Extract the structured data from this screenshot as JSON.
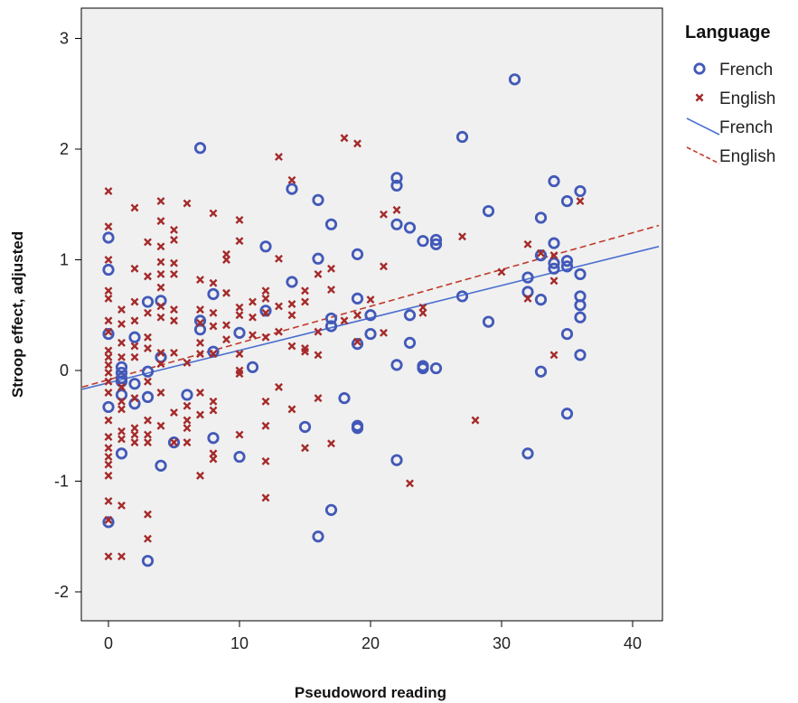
{
  "chart_data": {
    "type": "scatter",
    "xlabel": "Pseudoword reading",
    "ylabel": "Stroop effect, adjusted",
    "xlim": [
      -2,
      42
    ],
    "ylim": [
      -2.3,
      3.3
    ],
    "x_ticks": [
      "0",
      "10",
      "20",
      "30",
      "40"
    ],
    "y_ticks": [
      "-2",
      "-1",
      "0",
      "1",
      "2",
      "3"
    ],
    "grid": false,
    "legend": {
      "title": "Language",
      "position": "right",
      "entries": [
        {
          "label": "French",
          "kind": "marker-circle",
          "color": "#4259b8"
        },
        {
          "label": "English",
          "kind": "marker-x",
          "color": "#a52a2a"
        },
        {
          "label": "French",
          "kind": "line-solid",
          "color": "#4a6fd0"
        },
        {
          "label": "English",
          "kind": "line-dashed",
          "color": "#c0392b"
        }
      ]
    },
    "series": [
      {
        "name": "French",
        "marker": "circle",
        "color": "#4259b8",
        "points": [
          [
            0,
            1.2
          ],
          [
            0,
            0.91
          ],
          [
            0,
            0.33
          ],
          [
            0,
            -0.33
          ],
          [
            0,
            -1.37
          ],
          [
            1,
            0.03
          ],
          [
            1,
            -0.02
          ],
          [
            1,
            -0.07
          ],
          [
            1,
            -0.1
          ],
          [
            1,
            -0.22
          ],
          [
            1,
            -0.75
          ],
          [
            2,
            0.3
          ],
          [
            2,
            -0.12
          ],
          [
            2,
            -0.3
          ],
          [
            3,
            0.62
          ],
          [
            3,
            -0.01
          ],
          [
            3,
            -0.24
          ],
          [
            3,
            -1.72
          ],
          [
            4,
            0.63
          ],
          [
            4,
            0.12
          ],
          [
            4,
            -0.86
          ],
          [
            5,
            -0.65
          ],
          [
            6,
            -0.22
          ],
          [
            7,
            2.01
          ],
          [
            7,
            0.45
          ],
          [
            7,
            0.37
          ],
          [
            8,
            0.69
          ],
          [
            8,
            0.17
          ],
          [
            8,
            -0.61
          ],
          [
            10,
            0.34
          ],
          [
            10,
            -0.78
          ],
          [
            11,
            0.03
          ],
          [
            12,
            1.12
          ],
          [
            12,
            0.54
          ],
          [
            14,
            1.64
          ],
          [
            14,
            0.8
          ],
          [
            15,
            -0.51
          ],
          [
            16,
            1.54
          ],
          [
            16,
            1.01
          ],
          [
            16,
            -1.5
          ],
          [
            17,
            1.32
          ],
          [
            17,
            0.47
          ],
          [
            17,
            0.4
          ],
          [
            17,
            -1.26
          ],
          [
            18,
            -0.25
          ],
          [
            19,
            1.05
          ],
          [
            19,
            0.65
          ],
          [
            19,
            0.24
          ],
          [
            19,
            -0.5
          ],
          [
            19,
            -0.52
          ],
          [
            20,
            0.5
          ],
          [
            20,
            0.33
          ],
          [
            22,
            1.74
          ],
          [
            22,
            1.67
          ],
          [
            22,
            1.32
          ],
          [
            22,
            0.05
          ],
          [
            22,
            -0.81
          ],
          [
            23,
            1.29
          ],
          [
            23,
            0.5
          ],
          [
            23,
            0.25
          ],
          [
            24,
            1.17
          ],
          [
            24,
            0.04
          ],
          [
            24,
            0.02
          ],
          [
            25,
            1.18
          ],
          [
            25,
            1.14
          ],
          [
            25,
            0.02
          ],
          [
            27,
            2.11
          ],
          [
            27,
            0.67
          ],
          [
            29,
            1.44
          ],
          [
            29,
            0.44
          ],
          [
            31,
            2.63
          ],
          [
            32,
            0.84
          ],
          [
            32,
            0.71
          ],
          [
            32,
            -0.75
          ],
          [
            33,
            1.38
          ],
          [
            33,
            1.04
          ],
          [
            33,
            0.64
          ],
          [
            33,
            -0.01
          ],
          [
            34,
            1.71
          ],
          [
            34,
            1.15
          ],
          [
            34,
            0.97
          ],
          [
            34,
            0.92
          ],
          [
            35,
            1.53
          ],
          [
            35,
            0.99
          ],
          [
            35,
            0.94
          ],
          [
            35,
            0.33
          ],
          [
            35,
            -0.39
          ],
          [
            36,
            1.62
          ],
          [
            36,
            0.87
          ],
          [
            36,
            0.67
          ],
          [
            36,
            0.59
          ],
          [
            36,
            0.48
          ],
          [
            36,
            0.14
          ]
        ]
      },
      {
        "name": "English",
        "marker": "x",
        "color": "#a52a2a",
        "points": [
          [
            0,
            1.62
          ],
          [
            0,
            1.3
          ],
          [
            0,
            1.0
          ],
          [
            0,
            0.72
          ],
          [
            0,
            0.65
          ],
          [
            0,
            0.45
          ],
          [
            0,
            0.35
          ],
          [
            0,
            0.18
          ],
          [
            0,
            0.12
          ],
          [
            0,
            0.05
          ],
          [
            0,
            -0.02
          ],
          [
            0,
            -0.1
          ],
          [
            0,
            -0.2
          ],
          [
            0,
            -0.45
          ],
          [
            0,
            -0.6
          ],
          [
            0,
            -0.7
          ],
          [
            0,
            -0.78
          ],
          [
            0,
            -0.85
          ],
          [
            0,
            -0.95
          ],
          [
            0,
            -1.18
          ],
          [
            0,
            -1.35
          ],
          [
            0,
            -1.68
          ],
          [
            1,
            0.55
          ],
          [
            1,
            0.42
          ],
          [
            1,
            0.25
          ],
          [
            1,
            0.12
          ],
          [
            1,
            -0.15
          ],
          [
            1,
            -0.28
          ],
          [
            1,
            -0.35
          ],
          [
            1,
            -0.55
          ],
          [
            1,
            -0.62
          ],
          [
            1,
            -1.22
          ],
          [
            1,
            -1.68
          ],
          [
            2,
            1.47
          ],
          [
            2,
            0.92
          ],
          [
            2,
            0.62
          ],
          [
            2,
            0.45
          ],
          [
            2,
            0.22
          ],
          [
            2,
            0.12
          ],
          [
            2,
            -0.25
          ],
          [
            2,
            -0.52
          ],
          [
            2,
            -0.58
          ],
          [
            2,
            -0.65
          ],
          [
            3,
            1.16
          ],
          [
            3,
            0.85
          ],
          [
            3,
            0.52
          ],
          [
            3,
            0.3
          ],
          [
            3,
            0.2
          ],
          [
            3,
            -0.1
          ],
          [
            3,
            -0.45
          ],
          [
            3,
            -0.58
          ],
          [
            3,
            -0.65
          ],
          [
            3,
            -1.3
          ],
          [
            3,
            -1.52
          ],
          [
            4,
            1.53
          ],
          [
            4,
            1.35
          ],
          [
            4,
            1.12
          ],
          [
            4,
            0.98
          ],
          [
            4,
            0.87
          ],
          [
            4,
            0.75
          ],
          [
            4,
            0.58
          ],
          [
            4,
            0.48
          ],
          [
            4,
            0.16
          ],
          [
            4,
            0.06
          ],
          [
            4,
            -0.2
          ],
          [
            4,
            -0.5
          ],
          [
            5,
            1.27
          ],
          [
            5,
            1.18
          ],
          [
            5,
            0.97
          ],
          [
            5,
            0.87
          ],
          [
            5,
            0.55
          ],
          [
            5,
            0.45
          ],
          [
            5,
            0.16
          ],
          [
            5,
            -0.38
          ],
          [
            5,
            -0.65
          ],
          [
            6,
            1.51
          ],
          [
            6,
            0.07
          ],
          [
            6,
            -0.32
          ],
          [
            6,
            -0.45
          ],
          [
            6,
            -0.52
          ],
          [
            6,
            -0.65
          ],
          [
            7,
            0.82
          ],
          [
            7,
            0.55
          ],
          [
            7,
            0.43
          ],
          [
            7,
            0.25
          ],
          [
            7,
            0.15
          ],
          [
            7,
            -0.2
          ],
          [
            7,
            -0.4
          ],
          [
            7,
            -0.95
          ],
          [
            8,
            1.42
          ],
          [
            8,
            0.79
          ],
          [
            8,
            0.52
          ],
          [
            8,
            0.4
          ],
          [
            8,
            0.15
          ],
          [
            8,
            -0.28
          ],
          [
            8,
            -0.36
          ],
          [
            8,
            -0.75
          ],
          [
            8,
            -0.8
          ],
          [
            9,
            1.05
          ],
          [
            9,
            1.0
          ],
          [
            9,
            0.7
          ],
          [
            9,
            0.41
          ],
          [
            9,
            0.28
          ],
          [
            10,
            1.36
          ],
          [
            10,
            1.17
          ],
          [
            10,
            0.57
          ],
          [
            10,
            0.5
          ],
          [
            10,
            0.15
          ],
          [
            10,
            0.0
          ],
          [
            10,
            -0.03
          ],
          [
            10,
            -0.58
          ],
          [
            11,
            0.62
          ],
          [
            11,
            0.48
          ],
          [
            11,
            0.32
          ],
          [
            12,
            0.72
          ],
          [
            12,
            0.65
          ],
          [
            12,
            0.52
          ],
          [
            12,
            0.3
          ],
          [
            12,
            -0.28
          ],
          [
            12,
            -0.5
          ],
          [
            12,
            -0.82
          ],
          [
            12,
            -1.15
          ],
          [
            13,
            1.93
          ],
          [
            13,
            1.01
          ],
          [
            13,
            0.58
          ],
          [
            13,
            0.35
          ],
          [
            13,
            -0.15
          ],
          [
            14,
            1.72
          ],
          [
            14,
            0.6
          ],
          [
            14,
            0.5
          ],
          [
            14,
            0.22
          ],
          [
            14,
            -0.35
          ],
          [
            15,
            0.72
          ],
          [
            15,
            0.62
          ],
          [
            15,
            0.2
          ],
          [
            15,
            0.17
          ],
          [
            15,
            -0.7
          ],
          [
            16,
            0.87
          ],
          [
            16,
            0.35
          ],
          [
            16,
            0.14
          ],
          [
            16,
            -0.25
          ],
          [
            17,
            0.92
          ],
          [
            17,
            0.73
          ],
          [
            17,
            -0.66
          ],
          [
            18,
            2.1
          ],
          [
            18,
            0.45
          ],
          [
            19,
            2.05
          ],
          [
            19,
            0.5
          ],
          [
            19,
            0.26
          ],
          [
            20,
            0.64
          ],
          [
            21,
            1.41
          ],
          [
            21,
            0.94
          ],
          [
            21,
            0.34
          ],
          [
            22,
            1.45
          ],
          [
            24,
            0.57
          ],
          [
            24,
            0.52
          ],
          [
            23,
            -1.02
          ],
          [
            27,
            1.21
          ],
          [
            28,
            -0.45
          ],
          [
            30,
            0.89
          ],
          [
            32,
            1.14
          ],
          [
            32,
            0.65
          ],
          [
            33,
            1.06
          ],
          [
            34,
            1.04
          ],
          [
            34,
            0.81
          ],
          [
            34,
            0.14
          ],
          [
            36,
            1.53
          ]
        ]
      }
    ],
    "fit_lines": [
      {
        "name": "French",
        "style": "solid",
        "color": "#4a6fd0",
        "x": [
          -2,
          42
        ],
        "y": [
          -0.17,
          1.12
        ]
      },
      {
        "name": "English",
        "style": "dashed",
        "color": "#c0392b",
        "x": [
          -2,
          42
        ],
        "y": [
          -0.15,
          1.31
        ]
      }
    ]
  }
}
